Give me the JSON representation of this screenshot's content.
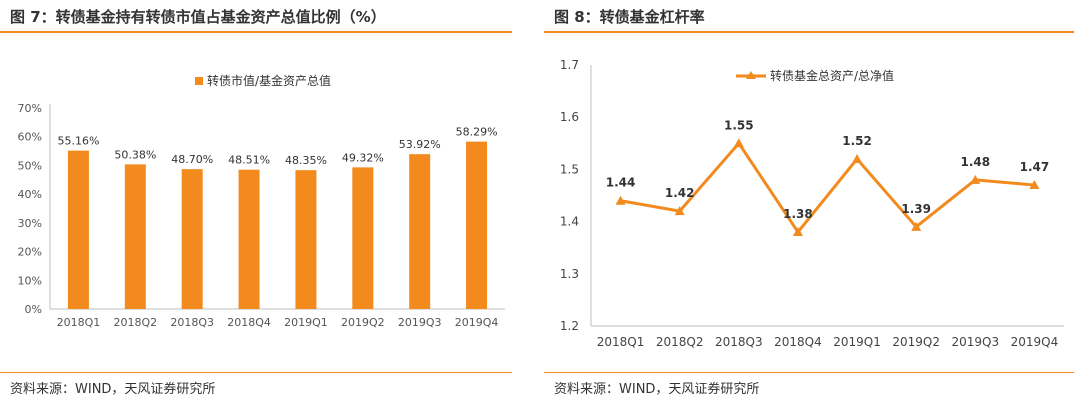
{
  "left": {
    "fig_title": "图 7：转债基金持有转债市值占基金资产总值比例（%）",
    "source": "资料来源：WIND，天风证券研究所"
  },
  "right": {
    "fig_title": "图 8：转债基金杠杆率",
    "source": "资料来源：WIND，天风证券研究所"
  },
  "colors": {
    "accent": "#f28a1e",
    "grid": "#d9d9d9"
  },
  "chart_data": [
    {
      "type": "bar",
      "title": "",
      "categories": [
        "2018Q1",
        "2018Q2",
        "2018Q3",
        "2018Q4",
        "2019Q1",
        "2019Q2",
        "2019Q3",
        "2019Q4"
      ],
      "series": [
        {
          "name": "转债市值/基金资产总值",
          "values": [
            55.16,
            50.38,
            48.7,
            48.51,
            48.35,
            49.32,
            53.92,
            58.29
          ]
        }
      ],
      "data_labels": [
        "55.16%",
        "50.38%",
        "48.70%",
        "48.51%",
        "48.35%",
        "49.32%",
        "53.92%",
        "58.29%"
      ],
      "yticks": [
        "0%",
        "10%",
        "20%",
        "30%",
        "40%",
        "50%",
        "60%",
        "70%"
      ],
      "ylim": [
        0,
        70
      ],
      "xlabel": "",
      "ylabel": "",
      "grid": false,
      "legend_position": "top"
    },
    {
      "type": "line",
      "title": "",
      "categories": [
        "2018Q1",
        "2018Q2",
        "2018Q3",
        "2018Q4",
        "2019Q1",
        "2019Q2",
        "2019Q3",
        "2019Q4"
      ],
      "series": [
        {
          "name": "转债基金总资产/总净值",
          "values": [
            1.44,
            1.42,
            1.55,
            1.38,
            1.52,
            1.39,
            1.48,
            1.47
          ]
        }
      ],
      "data_labels": [
        "1.44",
        "1.42",
        "1.55",
        "1.38",
        "1.52",
        "1.39",
        "1.48",
        "1.47"
      ],
      "yticks": [
        "1.2",
        "1.3",
        "1.4",
        "1.5",
        "1.6",
        "1.7"
      ],
      "ylim": [
        1.2,
        1.7
      ],
      "xlabel": "",
      "ylabel": "",
      "grid": false,
      "legend_position": "top",
      "marker": "triangle"
    }
  ]
}
